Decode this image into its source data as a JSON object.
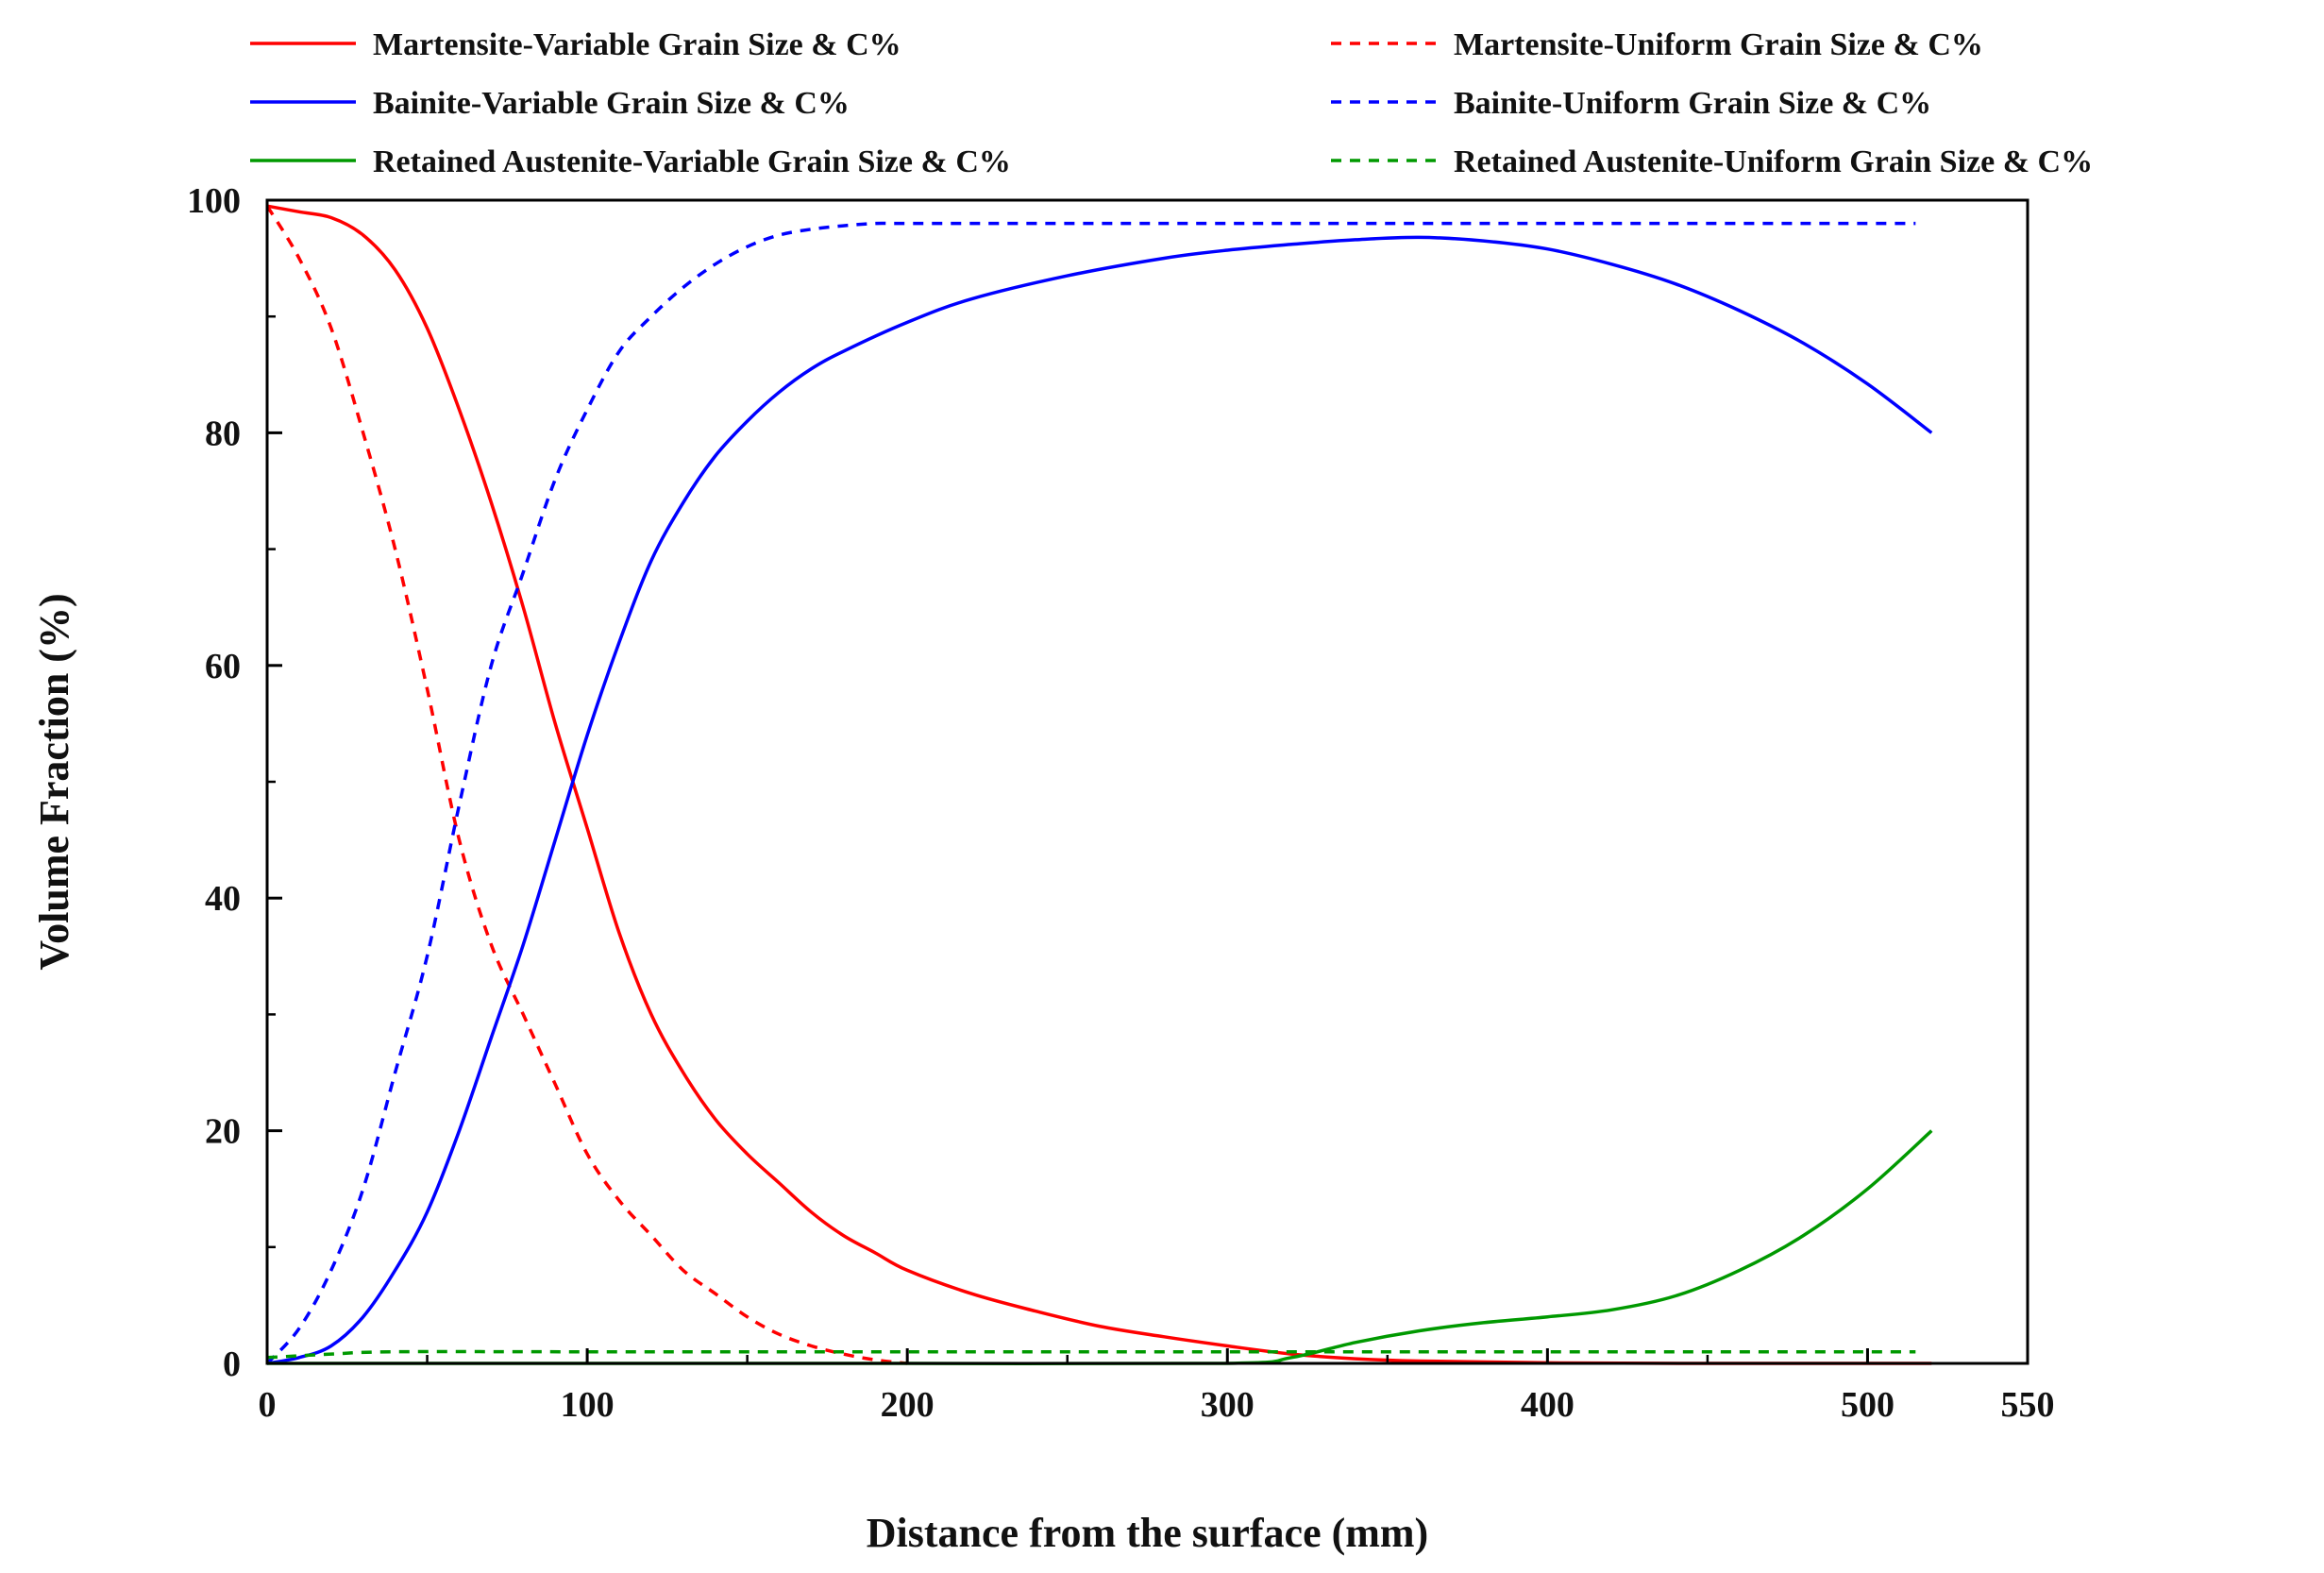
{
  "chart_data": {
    "type": "line",
    "xlabel": "Distance from the surface (mm)",
    "ylabel": "Volume Fraction (%)",
    "xlim": [
      0,
      550
    ],
    "ylim": [
      0,
      100
    ],
    "xticks": [
      0,
      100,
      200,
      300,
      400,
      500,
      550
    ],
    "yticks": [
      0,
      20,
      40,
      60,
      80,
      100
    ],
    "grid": false,
    "legend_position": "top",
    "series": [
      {
        "name": "Martensite-Variable Grain Size & C%",
        "color": "#ff0000",
        "style": "solid",
        "x": [
          0,
          10,
          20,
          30,
          40,
          50,
          60,
          70,
          80,
          90,
          100,
          110,
          120,
          130,
          140,
          150,
          160,
          170,
          180,
          190,
          200,
          220,
          240,
          260,
          280,
          300,
          320,
          340,
          360,
          400,
          450,
          500,
          520
        ],
        "y": [
          99.5,
          99,
          98.5,
          97,
          94,
          89,
          82,
          74,
          65,
          55,
          46,
          37,
          30,
          25,
          21,
          18,
          15.5,
          13,
          11,
          9.5,
          8,
          6,
          4.5,
          3.2,
          2.3,
          1.5,
          0.8,
          0.4,
          0.2,
          0.05,
          0,
          0,
          0
        ]
      },
      {
        "name": "Martensite-Uniform Grain Size & C%",
        "color": "#ff0000",
        "style": "dashed",
        "x": [
          0,
          10,
          20,
          30,
          40,
          50,
          60,
          70,
          80,
          90,
          100,
          110,
          120,
          130,
          140,
          150,
          160,
          170,
          180,
          190,
          200
        ],
        "y": [
          99.5,
          95,
          89,
          80,
          70,
          58,
          45,
          36,
          30,
          24,
          18,
          14,
          11,
          8,
          6,
          4,
          2.5,
          1.5,
          0.8,
          0.3,
          0
        ]
      },
      {
        "name": "Bainite-Variable Grain Size & C%",
        "color": "#0000ff",
        "style": "solid",
        "x": [
          0,
          10,
          20,
          30,
          40,
          50,
          60,
          70,
          80,
          90,
          100,
          110,
          120,
          130,
          140,
          150,
          160,
          170,
          180,
          200,
          220,
          250,
          280,
          300,
          320,
          340,
          360,
          380,
          400,
          420,
          440,
          460,
          480,
          500,
          520
        ],
        "y": [
          0,
          0.5,
          1.5,
          4,
          8,
          13,
          20,
          28,
          36,
          45,
          54,
          62,
          69,
          74,
          78,
          81,
          83.5,
          85.5,
          87,
          89.5,
          91.5,
          93.5,
          95,
          95.7,
          96.2,
          96.6,
          96.8,
          96.5,
          95.8,
          94.5,
          92.8,
          90.5,
          87.7,
          84.2,
          80
        ]
      },
      {
        "name": "Bainite-Uniform Grain Size & C%",
        "color": "#0000ff",
        "style": "dashed",
        "x": [
          0,
          10,
          20,
          30,
          40,
          50,
          60,
          70,
          80,
          90,
          100,
          110,
          120,
          130,
          140,
          150,
          160,
          170,
          180,
          190,
          200,
          250,
          300,
          400,
          500,
          515
        ],
        "y": [
          0,
          3,
          8,
          15,
          25,
          35,
          48,
          60,
          68,
          76,
          82,
          87,
          90,
          92.5,
          94.5,
          96,
          97,
          97.5,
          97.8,
          98,
          98,
          98,
          98,
          98,
          98,
          98
        ]
      },
      {
        "name": "Retained Austenite-Variable Grain Size & C%",
        "color": "#009900",
        "style": "solid",
        "x": [
          0,
          100,
          200,
          300,
          320,
          340,
          360,
          380,
          400,
          420,
          440,
          460,
          480,
          500,
          520
        ],
        "y": [
          0,
          0,
          0,
          0,
          0.5,
          1.8,
          2.8,
          3.5,
          4,
          4.6,
          5.8,
          8,
          11,
          15,
          20
        ]
      },
      {
        "name": "Retained Austenite-Uniform Grain Size & C%",
        "color": "#009900",
        "style": "dashed",
        "x": [
          0,
          20,
          40,
          100,
          200,
          300,
          400,
          500,
          515
        ],
        "y": [
          0.5,
          0.8,
          1,
          1,
          1,
          1,
          1,
          1,
          1
        ]
      }
    ]
  }
}
